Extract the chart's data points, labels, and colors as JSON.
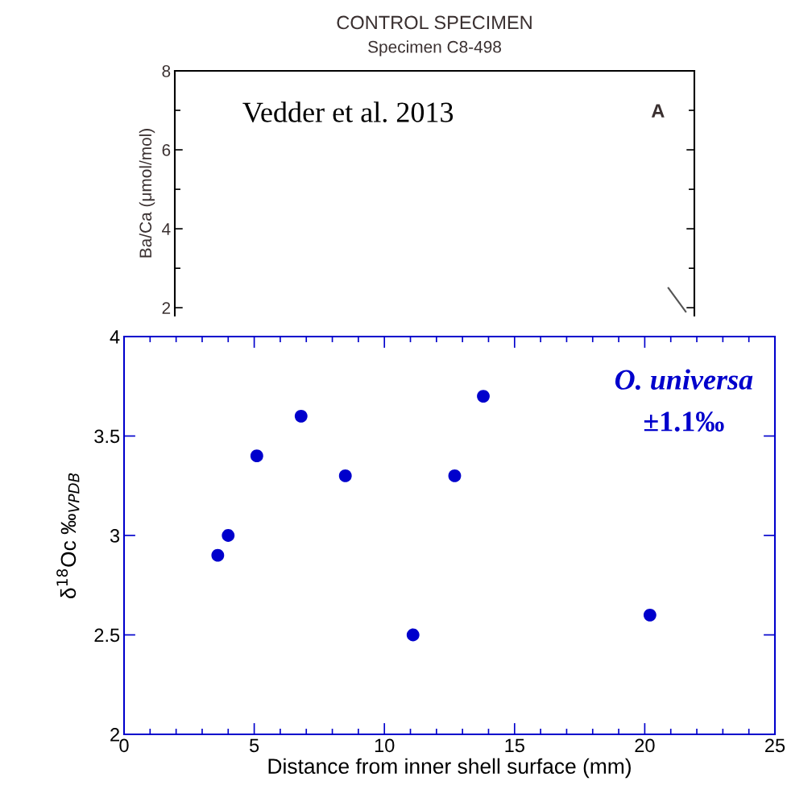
{
  "chart_data": [
    {
      "type": "line",
      "title": "CONTROL SPECIMEN",
      "subtitle": "Specimen C8-498",
      "ylabel": "Ba/Ca (μmol/mol)",
      "ylim": [
        1.8,
        8
      ],
      "yticks": [
        2,
        4,
        6,
        8
      ],
      "tick_labels": "y",
      "annotations": [
        "Vedder et al. 2013",
        "A"
      ],
      "categories": [
        null,
        null,
        null,
        null,
        null,
        null,
        null,
        null,
        null,
        null,
        null,
        null,
        null,
        null,
        null,
        null,
        null,
        null,
        null,
        null,
        null,
        null,
        null,
        null,
        null,
        null,
        null,
        null,
        null,
        null
      ],
      "series": [
        {
          "color": "#555555",
          "values": [
            null,
            null,
            null,
            null,
            null,
            null,
            null,
            null,
            null,
            null,
            null,
            null,
            null,
            null,
            null,
            null,
            null,
            null,
            null,
            null,
            null,
            null,
            null,
            null,
            null,
            null,
            null,
            null,
            2.5,
            1.9
          ]
        }
      ]
    },
    {
      "type": "scatter",
      "xlabel": "Distance from inner shell surface (mm)",
      "ylabel": "δ$^{18}$Oc ‰$_{VPDB}$",
      "xlim": [
        0,
        25
      ],
      "xticks": [
        0,
        5,
        10,
        15,
        20,
        25
      ],
      "ylim": [
        2,
        4
      ],
      "yticks": [
        2,
        2.5,
        3,
        3.5,
        4
      ],
      "marker": "circle",
      "annotations": [
        "O. universa",
        "±1.1‰"
      ],
      "series": [
        {
          "color": "#0000cc",
          "x": [
            3.6,
            4.0,
            5.1,
            6.8,
            8.5,
            11.1,
            12.7,
            13.8,
            20.2
          ],
          "values": [
            2.9,
            3.0,
            3.4,
            3.6,
            3.3,
            2.5,
            3.3,
            3.7,
            2.6
          ]
        }
      ]
    }
  ]
}
